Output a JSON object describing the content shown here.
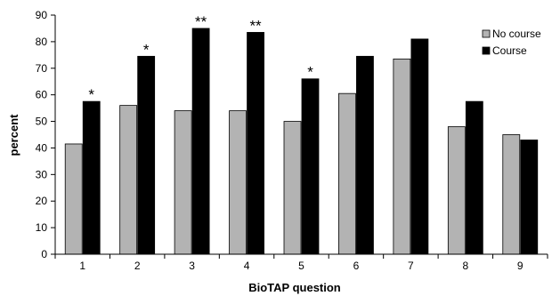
{
  "chart_data": {
    "type": "bar",
    "title": "",
    "xlabel": "BioTAP question",
    "ylabel": "percent",
    "ylim": [
      0,
      90
    ],
    "yticks": [
      0,
      10,
      20,
      30,
      40,
      50,
      60,
      70,
      80,
      90
    ],
    "grid": false,
    "legend_position": "top-right",
    "categories": [
      "1",
      "2",
      "3",
      "4",
      "5",
      "6",
      "7",
      "8",
      "9"
    ],
    "series": [
      {
        "name": "No course",
        "color": "#b3b3b3",
        "values": [
          41.5,
          56,
          54,
          54,
          50,
          60.5,
          73.5,
          48,
          45
        ]
      },
      {
        "name": "Course",
        "color": "#000000",
        "values": [
          57.5,
          74.5,
          85,
          83.5,
          66,
          74.5,
          81,
          57.5,
          43
        ]
      }
    ],
    "annotations": [
      "*",
      "*",
      "**",
      "**",
      "*",
      "",
      "",
      "",
      ""
    ]
  }
}
